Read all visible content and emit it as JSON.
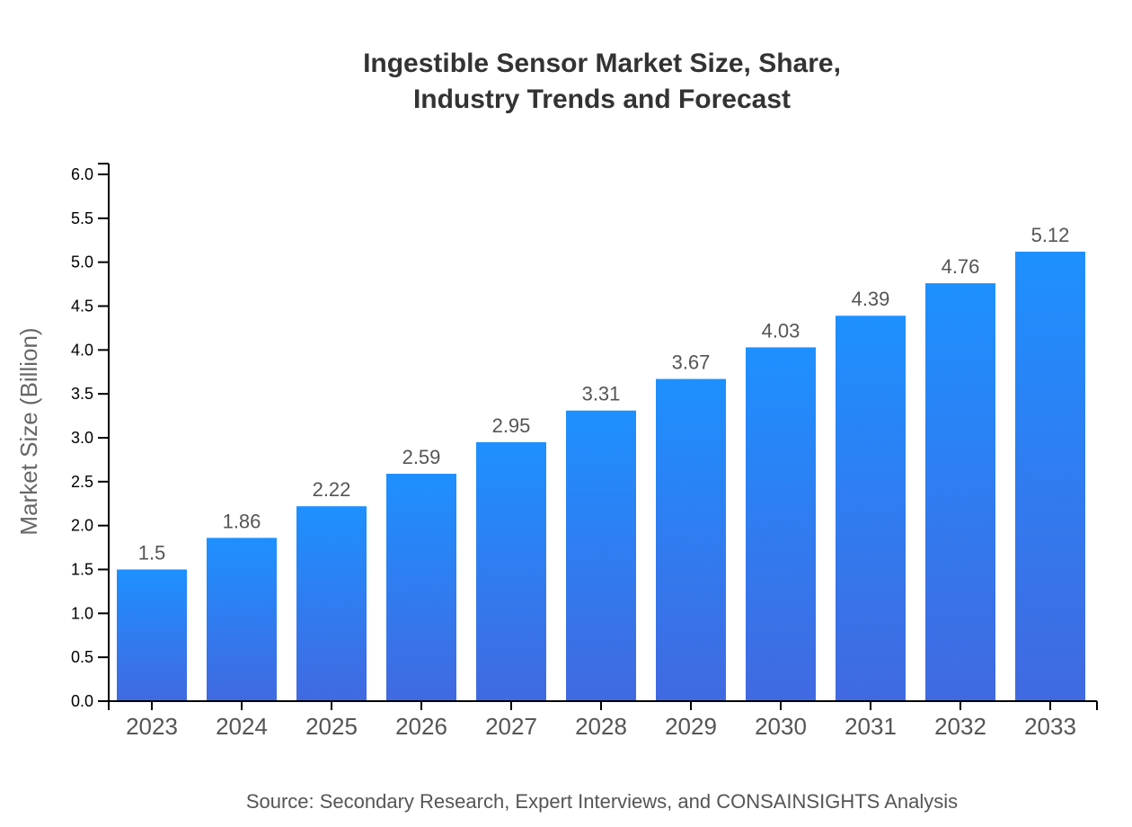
{
  "chart_data": {
    "type": "bar",
    "title_lines": [
      "Ingestible Sensor Market Size, Share,",
      "Industry Trends and Forecast"
    ],
    "xlabel": "",
    "ylabel": "Market Size (Billion)",
    "categories": [
      "2023",
      "2024",
      "2025",
      "2026",
      "2027",
      "2028",
      "2029",
      "2030",
      "2031",
      "2032",
      "2033"
    ],
    "values": [
      1.5,
      1.86,
      2.22,
      2.59,
      2.95,
      3.31,
      3.67,
      4.03,
      4.39,
      4.76,
      5.12
    ],
    "ylim": [
      0,
      6.0
    ],
    "yticks": [
      "0.0",
      "0.5",
      "1.0",
      "1.5",
      "2.0",
      "2.5",
      "3.0",
      "3.5",
      "4.0",
      "4.5",
      "5.0",
      "5.5",
      "6.0"
    ],
    "grid": false,
    "legend": "none",
    "colors": {
      "bar_top": "#1e90ff",
      "bar_bottom": "#4169e1"
    },
    "source": "Source: Secondary Research, Expert Interviews, and CONSAINSIGHTS Analysis"
  }
}
